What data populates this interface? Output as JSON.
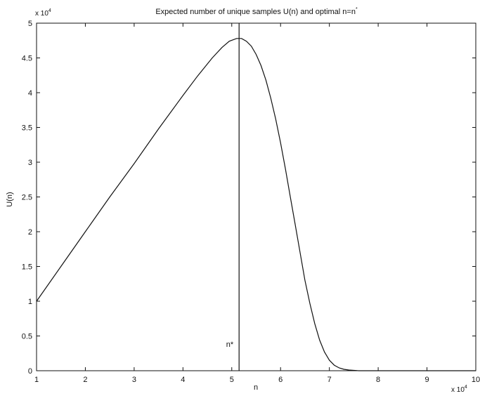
{
  "chart_data": {
    "type": "line",
    "title": "Expected number of unique samples U(n) and optimal n=n",
    "title_superscript": "*",
    "xlabel": "n",
    "ylabel": "U(n)",
    "x_multiplier": {
      "base": "x 10",
      "exp": "4"
    },
    "y_multiplier": {
      "base": "x 10",
      "exp": "4"
    },
    "xlim": [
      1,
      10
    ],
    "ylim": [
      0,
      5
    ],
    "xticks": [
      1,
      2,
      3,
      4,
      5,
      6,
      7,
      8,
      9,
      10
    ],
    "yticks": [
      0,
      0.5,
      1,
      1.5,
      2,
      2.5,
      3,
      3.5,
      4,
      4.5,
      5
    ],
    "grid": false,
    "legend": "none",
    "series": [
      {
        "x": [
          1.0,
          1.5,
          2.0,
          2.5,
          3.0,
          3.5,
          4.0,
          4.3,
          4.6,
          4.8,
          4.95,
          5.1,
          5.2,
          5.3,
          5.4,
          5.5,
          5.6,
          5.7,
          5.8,
          5.9,
          6.0,
          6.1,
          6.2,
          6.3,
          6.4,
          6.5,
          6.6,
          6.7,
          6.8,
          6.9,
          7.0,
          7.1,
          7.2,
          7.3,
          7.4,
          7.5,
          7.6,
          7.8,
          8.0,
          9.0,
          10.0
        ],
        "y": [
          1.0,
          1.5,
          2.0,
          2.5,
          2.98,
          3.48,
          3.96,
          4.24,
          4.5,
          4.65,
          4.74,
          4.78,
          4.78,
          4.74,
          4.67,
          4.55,
          4.39,
          4.18,
          3.92,
          3.62,
          3.28,
          2.9,
          2.5,
          2.1,
          1.7,
          1.3,
          0.97,
          0.68,
          0.44,
          0.27,
          0.15,
          0.08,
          0.04,
          0.02,
          0.01,
          0.005,
          0.0,
          0.0,
          0.0,
          0.0,
          0.0
        ]
      }
    ],
    "annotations": [
      {
        "type": "vline",
        "x": 5.15,
        "label": "n*"
      }
    ]
  }
}
